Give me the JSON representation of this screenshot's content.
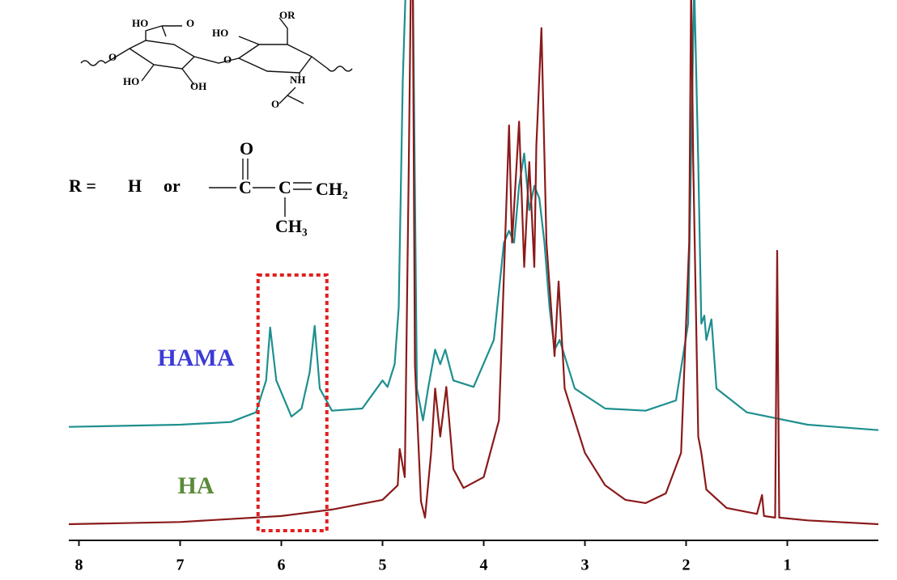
{
  "chart_data": {
    "type": "line",
    "xlim": [
      8.1,
      0.1
    ],
    "xticks": [
      8,
      7,
      6,
      5,
      4,
      3,
      2,
      1
    ],
    "ylim": [
      0,
      100
    ],
    "highlight_x": [
      6.23,
      5.55
    ],
    "series": [
      {
        "name": "HAMA",
        "color": "#1f8f8f",
        "label_color": "#3b3bd6",
        "x": [
          8.1,
          7,
          6.5,
          6.25,
          6.15,
          6.11,
          6.05,
          5.9,
          5.8,
          5.72,
          5.67,
          5.62,
          5.5,
          5.2,
          5.0,
          4.95,
          4.88,
          4.84,
          4.8,
          4.77,
          4.7,
          4.66,
          4.6,
          4.55,
          4.48,
          4.43,
          4.38,
          4.3,
          4.1,
          3.9,
          3.8,
          3.75,
          3.7,
          3.65,
          3.6,
          3.55,
          3.5,
          3.45,
          3.4,
          3.35,
          3.3,
          3.25,
          3.2,
          3.1,
          2.8,
          2.4,
          2.1,
          1.98,
          1.92,
          1.88,
          1.85,
          1.82,
          1.8,
          1.75,
          1.7,
          1.4,
          0.8,
          0.1
        ],
        "values": [
          21.0,
          21.4,
          21.9,
          23.7,
          29.6,
          39.4,
          29.6,
          22.9,
          24.4,
          31.1,
          39.7,
          28.1,
          24.0,
          24.4,
          29.6,
          28.4,
          32.6,
          43.1,
          85.0,
          103,
          103,
          28.1,
          22.2,
          28.1,
          35.3,
          32.6,
          35.3,
          29.6,
          28.4,
          37.1,
          55.1,
          57.3,
          55.1,
          65.6,
          71.6,
          61.1,
          65.6,
          63.3,
          55.1,
          43.1,
          35.3,
          37.1,
          34.1,
          28.1,
          24.4,
          24.0,
          25.9,
          40.1,
          103,
          70.0,
          40.1,
          41.6,
          37.1,
          40.9,
          28.1,
          23.7,
          21.4,
          20.4
        ]
      },
      {
        "name": "HA",
        "color": "#8b1a1a",
        "label_color": "#5a8a3a",
        "x": [
          8.1,
          7,
          6,
          5.5,
          5.0,
          4.85,
          4.83,
          4.78,
          4.74,
          4.72,
          4.7,
          4.68,
          4.62,
          4.58,
          4.52,
          4.48,
          4.43,
          4.37,
          4.3,
          4.2,
          4.0,
          3.85,
          3.75,
          3.72,
          3.65,
          3.6,
          3.55,
          3.5,
          3.48,
          3.43,
          3.38,
          3.3,
          3.26,
          3.2,
          3.0,
          2.8,
          2.6,
          2.4,
          2.2,
          2.05,
          1.97,
          1.95,
          1.93,
          1.88,
          1.85,
          1.8,
          1.6,
          1.3,
          1.25,
          1.23,
          1.12,
          1.1,
          1.08,
          0.8,
          0.1
        ],
        "values": [
          3.0,
          3.4,
          4.5,
          5.7,
          7.5,
          10.2,
          16.9,
          11.7,
          70.0,
          103,
          100,
          32.6,
          7.2,
          4.2,
          16.2,
          28.1,
          19.2,
          28.4,
          13.2,
          9.7,
          11.7,
          22.2,
          76.8,
          55.1,
          77.5,
          50.6,
          70.0,
          50.6,
          73.0,
          94.8,
          55.1,
          34.1,
          47.9,
          28.1,
          16.2,
          10.2,
          7.5,
          6.9,
          8.7,
          16.2,
          55.1,
          103,
          70.0,
          19.2,
          16.2,
          9.4,
          6.0,
          4.9,
          8.4,
          4.5,
          4.2,
          53.6,
          4.2,
          3.7,
          3.0
        ]
      }
    ]
  },
  "structure": {
    "labels": [
      "HO",
      "O",
      "OR",
      "HO",
      "O",
      "O",
      "HO",
      "OH",
      "NH",
      "O"
    ],
    "r_label": "R =",
    "h": "H",
    "or": "or",
    "carbonyl_o": "O",
    "c1": "C",
    "c2": "C",
    "ch2": "CH₂",
    "ch3": "CH₃"
  }
}
